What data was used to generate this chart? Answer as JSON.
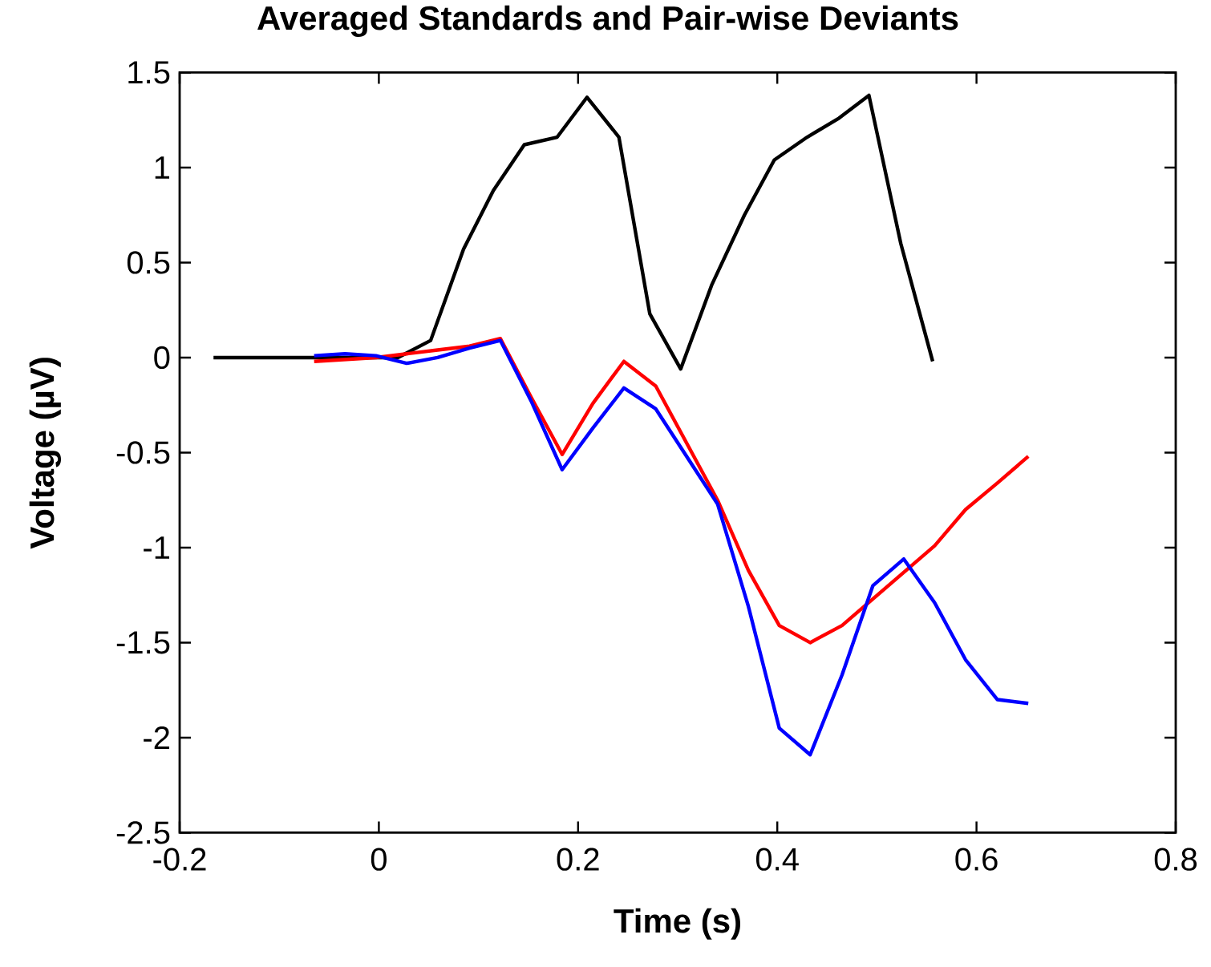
{
  "chart_data": {
    "type": "line",
    "title": "Averaged Standards and Pair-wise Deviants",
    "xlabel": "Time (s)",
    "ylabel": "Voltage (µV)",
    "xlim": [
      -0.2,
      0.8
    ],
    "ylim": [
      -2.5,
      1.5
    ],
    "xticks": [
      -0.2,
      0,
      0.2,
      0.4,
      0.6,
      0.8
    ],
    "yticks": [
      -2.5,
      -2,
      -1.5,
      -1,
      -0.5,
      0,
      0.5,
      1,
      1.5
    ],
    "grid": false,
    "marker": "none",
    "line_style": "solid",
    "series": [
      {
        "color": "#000000",
        "x": [
          -0.166,
          -0.065,
          0.019,
          0.052,
          0.085,
          0.115,
          0.146,
          0.179,
          0.209,
          0.241,
          0.272,
          0.303,
          0.334,
          0.367,
          0.397,
          0.43,
          0.462,
          0.492,
          0.524,
          0.556
        ],
        "values": [
          0,
          0,
          0,
          0.09,
          0.57,
          0.88,
          1.12,
          1.16,
          1.37,
          1.16,
          0.23,
          -0.06,
          0.38,
          0.75,
          1.04,
          1.16,
          1.26,
          1.38,
          0.6,
          -0.02
        ]
      },
      {
        "color": "#ff0000",
        "x": [
          -0.065,
          -0.034,
          -0.003,
          0.028,
          0.059,
          0.091,
          0.122,
          0.153,
          0.184,
          0.215,
          0.246,
          0.278,
          0.309,
          0.34,
          0.371,
          0.402,
          0.433,
          0.465,
          0.496,
          0.527,
          0.558,
          0.589,
          0.621,
          0.652
        ],
        "values": [
          -0.02,
          -0.01,
          0.0,
          0.02,
          0.04,
          0.06,
          0.1,
          -0.21,
          -0.51,
          -0.24,
          -0.02,
          -0.15,
          -0.45,
          -0.75,
          -1.12,
          -1.41,
          -1.5,
          -1.41,
          -1.27,
          -1.13,
          -0.99,
          -0.8,
          -0.66,
          -0.52
        ]
      },
      {
        "color": "#0000ff",
        "x": [
          -0.065,
          -0.034,
          -0.003,
          0.028,
          0.059,
          0.091,
          0.122,
          0.153,
          0.184,
          0.215,
          0.246,
          0.278,
          0.309,
          0.34,
          0.371,
          0.402,
          0.433,
          0.465,
          0.496,
          0.527,
          0.558,
          0.589,
          0.621,
          0.652
        ],
        "values": [
          0.01,
          0.02,
          0.01,
          -0.03,
          0.0,
          0.05,
          0.09,
          -0.23,
          -0.59,
          -0.37,
          -0.16,
          -0.27,
          -0.52,
          -0.77,
          -1.31,
          -1.95,
          -2.09,
          -1.67,
          -1.2,
          -1.06,
          -1.29,
          -1.59,
          -1.8,
          -1.82
        ]
      }
    ]
  }
}
